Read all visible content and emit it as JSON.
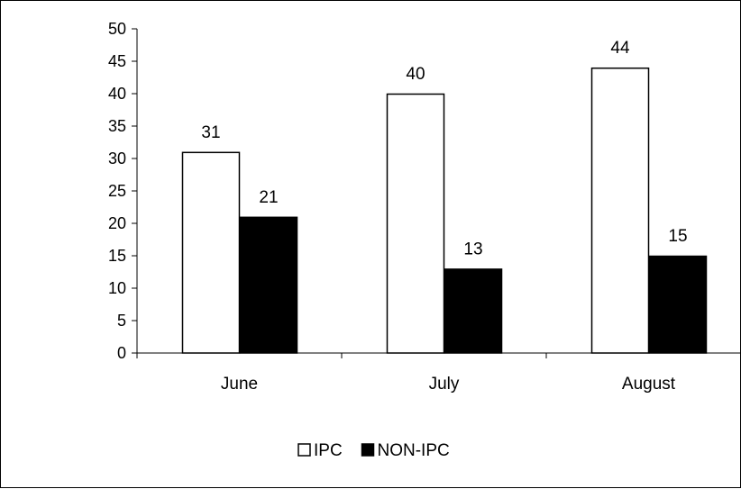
{
  "chart_data": {
    "type": "bar",
    "categories": [
      "June",
      "July",
      "August"
    ],
    "series": [
      {
        "name": "IPC",
        "values": [
          31,
          40,
          44
        ],
        "fill": "#ffffff",
        "stroke": "#000000"
      },
      {
        "name": "NON-IPC",
        "values": [
          21,
          13,
          15
        ],
        "fill": "#000000",
        "stroke": "#000000"
      }
    ],
    "title": "",
    "xlabel": "",
    "ylabel": "",
    "ylim": [
      0,
      50
    ],
    "yticks": [
      "0",
      "5",
      "10",
      "15",
      "20",
      "25",
      "30",
      "35",
      "40",
      "45",
      "50"
    ],
    "grid": false,
    "legend": "bottom-center",
    "data_labels": true
  }
}
